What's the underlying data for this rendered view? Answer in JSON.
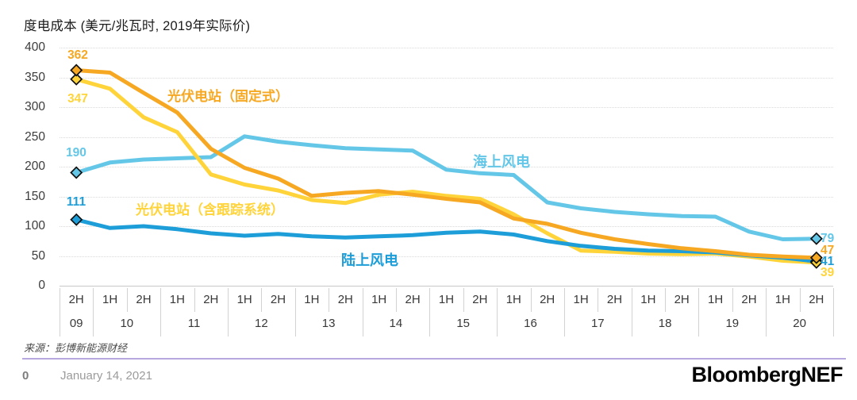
{
  "title": "度电成本 (美元/兆瓦时, 2019年实际价)",
  "source_note": "来源：彭博新能源财经",
  "footer": {
    "page_number": "0",
    "date": "January 14, 2021",
    "logo": "BloombergNEF"
  },
  "colors": {
    "fixed_pv": "#F6A822",
    "tracking_pv": "#FFD43B",
    "offshore_wind": "#64C7E8",
    "onshore_wind": "#1E9ED9",
    "grid": "#d9d9d9",
    "axis_text": "#3c3c3c",
    "divider": "#b7a8e0",
    "marker_outline": "#111111"
  },
  "chart_data": {
    "type": "line",
    "title": "度电成本 (美元/兆瓦时, 2019年实际价)",
    "ylabel": "美元/兆瓦时",
    "ylim": [
      0,
      400
    ],
    "yticks": [
      400,
      350,
      300,
      250,
      200,
      150,
      100,
      50,
      0
    ],
    "grid": true,
    "legend_position": "inline-labels",
    "categories": [
      "2H 09",
      "1H 10",
      "2H 10",
      "1H 11",
      "2H 11",
      "1H 12",
      "2H 12",
      "1H 13",
      "2H 13",
      "1H 14",
      "2H 14",
      "1H 15",
      "2H 15",
      "1H 16",
      "2H 16",
      "1H 17",
      "2H 17",
      "1H 18",
      "2H 18",
      "1H 19",
      "2H 19",
      "1H 20",
      "2H 20"
    ],
    "x_axis": {
      "year_groups": [
        {
          "label": "09",
          "cols": 1
        },
        {
          "label": "10",
          "cols": 2
        },
        {
          "label": "11",
          "cols": 2
        },
        {
          "label": "12",
          "cols": 2
        },
        {
          "label": "13",
          "cols": 2
        },
        {
          "label": "14",
          "cols": 2
        },
        {
          "label": "15",
          "cols": 2
        },
        {
          "label": "16",
          "cols": 2
        },
        {
          "label": "17",
          "cols": 2
        },
        {
          "label": "18",
          "cols": 2
        },
        {
          "label": "19",
          "cols": 2
        },
        {
          "label": "20",
          "cols": 2
        }
      ]
    },
    "series": [
      {
        "name": "光伏电站（固定式）",
        "color": "#F6A822",
        "start_label": "362",
        "end_label": "47",
        "values": [
          362,
          358,
          324,
          291,
          230,
          198,
          180,
          151,
          156,
          159,
          153,
          146,
          140,
          113,
          104,
          89,
          78,
          70,
          63,
          58,
          52,
          49,
          47
        ]
      },
      {
        "name": "光伏电站（含跟踪系统）",
        "color": "#FFD43B",
        "start_label": "347",
        "end_label": "39",
        "values": [
          347,
          331,
          283,
          258,
          187,
          170,
          160,
          144,
          139,
          153,
          158,
          151,
          146,
          120,
          88,
          59,
          57,
          54,
          53,
          54,
          49,
          42,
          39
        ]
      },
      {
        "name": "海上风电",
        "color": "#64C7E8",
        "start_label": "190",
        "end_label": "79",
        "values": [
          190,
          207,
          212,
          214,
          216,
          251,
          242,
          236,
          231,
          229,
          227,
          195,
          189,
          186,
          140,
          130,
          124,
          120,
          117,
          116,
          91,
          78,
          79
        ]
      },
      {
        "name": "陆上风电",
        "color": "#1E9ED9",
        "start_label": "111",
        "end_label": "41",
        "values": [
          111,
          97,
          100,
          95,
          88,
          84,
          87,
          83,
          81,
          83,
          85,
          89,
          91,
          86,
          75,
          67,
          62,
          59,
          58,
          56,
          51,
          47,
          41
        ]
      }
    ]
  }
}
